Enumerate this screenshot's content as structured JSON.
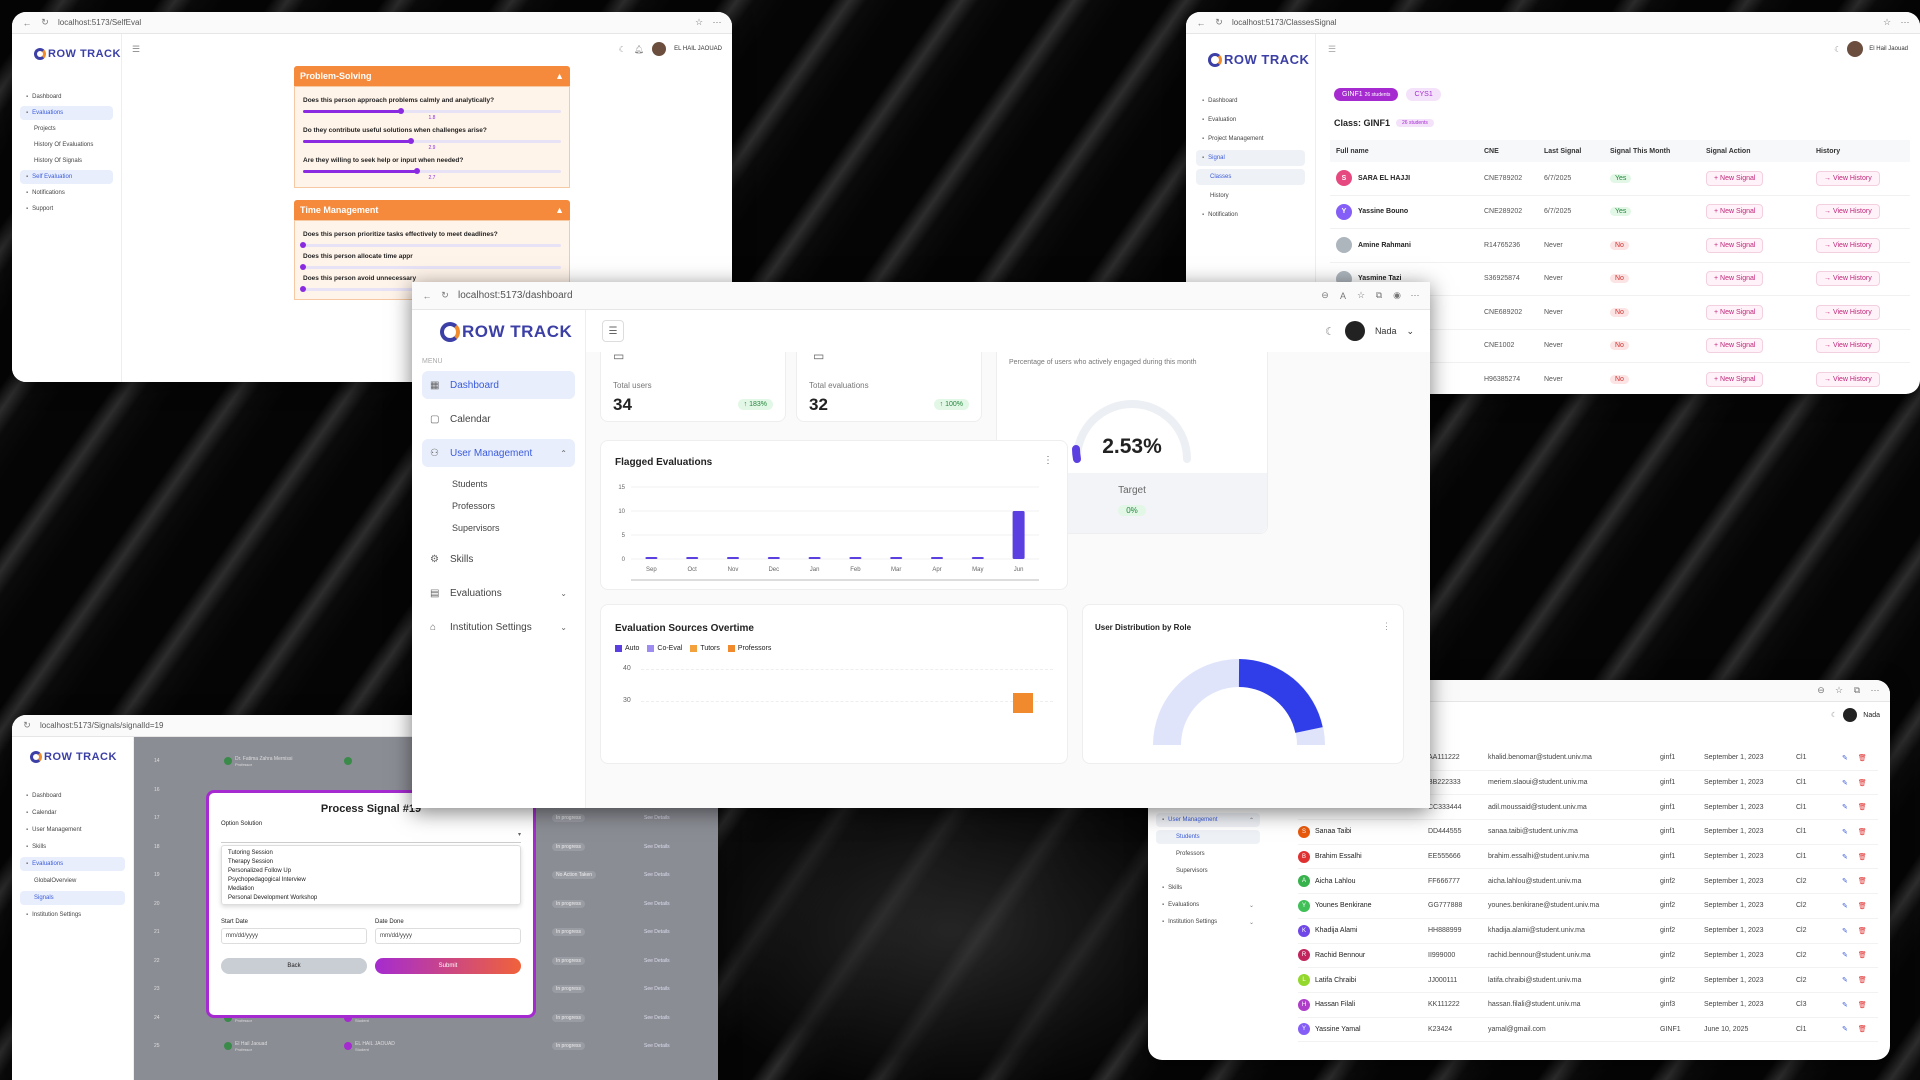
{
  "w1": {
    "url": "localhost:5173/SelfEval",
    "logo": "ROW TRACK",
    "user": "EL HAIL JAOUAD",
    "menu": [
      "Dashboard",
      "Evaluations",
      "Projects",
      "History Of Evaluations",
      "History Of Signals",
      "Self Evaluation",
      "Notifications",
      "Support"
    ],
    "section1": {
      "title": "Problem-Solving",
      "questions": [
        {
          "q": "Does this person approach problems calmly and analytically?",
          "value": "1.8",
          "pct": 0.38
        },
        {
          "q": "Do they contribute useful solutions when challenges arise?",
          "value": "2.9",
          "pct": 0.42
        },
        {
          "q": "Are they willing to seek help or input when needed?",
          "value": "2.7",
          "pct": 0.44
        }
      ]
    },
    "section2": {
      "title": "Time Management",
      "questions": [
        {
          "q": "Does this person prioritize tasks effectively to meet deadlines?",
          "pct": 0.0
        },
        {
          "q": "Does this person allocate time appr",
          "pct": 0.0
        },
        {
          "q": "Does this person avoid unnecessary",
          "pct": 0.0
        }
      ]
    }
  },
  "w2": {
    "url": "localhost:5173/ClassesSignal",
    "logo": "ROW TRACK",
    "user": "El Hail Jaouad",
    "menu": [
      "Dashboard",
      "Evaluation",
      "Project Management",
      "Signal",
      "Classes",
      "History",
      "Notification"
    ],
    "tabs": [
      {
        "label": "GINF1",
        "badge": "26 students"
      },
      {
        "label": "CYS1",
        "badge": ""
      }
    ],
    "class_title": "Class: GINF1",
    "class_badge": "26 students",
    "headers": [
      "Full name",
      "CNE",
      "Last Signal",
      "Signal This Month",
      "Signal Action",
      "History"
    ],
    "rows": [
      {
        "initial": "S",
        "name": "SARA EL HAJJI",
        "cne": "CNE789202",
        "last": "6/7/2025",
        "month": "Yes",
        "color": "#e64980"
      },
      {
        "initial": "Y",
        "name": "Yassine Bouno",
        "cne": "CNE289202",
        "last": "6/7/2025",
        "month": "Yes",
        "color": "#845ef7"
      },
      {
        "initial": "",
        "name": "Amine Rahmani",
        "cne": "R14765236",
        "last": "Never",
        "month": "No",
        "color": "#adb5bd"
      },
      {
        "initial": "",
        "name": "Yasmine Tazi",
        "cne": "S36925874",
        "last": "Never",
        "month": "No",
        "color": "#adb5bd"
      },
      {
        "initial": "",
        "name": "",
        "cne": "CNE689202",
        "last": "Never",
        "month": "No",
        "color": "#fff"
      },
      {
        "initial": "",
        "name": "",
        "cne": "CNE1002",
        "last": "Never",
        "month": "No",
        "color": "#fff"
      },
      {
        "initial": "",
        "name": "",
        "cne": "H96385274",
        "last": "Never",
        "month": "No",
        "color": "#fff"
      }
    ],
    "action_label": "New Signal",
    "history_label": "View History"
  },
  "w3": {
    "url": "localhost:5173/dashboard",
    "logo": "ROW TRACK",
    "user": "Nada",
    "menu_label": "MENU",
    "menu": [
      {
        "label": "Dashboard",
        "icon": "grid-icon",
        "active": true
      },
      {
        "label": "Calendar",
        "icon": "calendar-icon"
      },
      {
        "label": "User Management",
        "icon": "users-icon",
        "expanded": true
      },
      {
        "label": "Skills",
        "icon": "brain-icon"
      },
      {
        "label": "Evaluations",
        "icon": "clipboard-icon"
      },
      {
        "label": "Institution Settings",
        "icon": "gradcap-icon"
      }
    ],
    "submenu": [
      "Students",
      "Professors",
      "Supervisors"
    ],
    "stat1": {
      "label": "Total users",
      "value": "34",
      "change": "183%"
    },
    "stat2": {
      "label": "Total evaluations",
      "value": "32",
      "change": "100%"
    },
    "engage": {
      "caption": "Percentage of users who actively engaged during this month",
      "value": "2.53%",
      "target_label": "Target",
      "target_value": "0%"
    },
    "flagged_title": "Flagged Evaluations",
    "sources_title": "Evaluation Sources Overtime",
    "sources_legend": [
      {
        "name": "Auto",
        "color": "#5b3fe0"
      },
      {
        "name": "Co-Eval",
        "color": "#9f8cf0"
      },
      {
        "name": "Tutors",
        "color": "#f2a13c"
      },
      {
        "name": "Professors",
        "color": "#f08a2c"
      }
    ],
    "sources_ticks": [
      "40",
      "30"
    ],
    "dist_title": "User Distribution by Role"
  },
  "chart_data": {
    "type": "bar",
    "title": "Flagged Evaluations",
    "categories": [
      "Sep",
      "Oct",
      "Nov",
      "Dec",
      "Jan",
      "Feb",
      "Mar",
      "Apr",
      "May",
      "Jun"
    ],
    "values": [
      0,
      0,
      0,
      0,
      0,
      0,
      0.2,
      0,
      0,
      10
    ],
    "yticks": [
      0,
      5,
      10,
      15
    ],
    "ylim": [
      0,
      15
    ],
    "color": "#5b3fe0"
  },
  "w4": {
    "url": "localhost:5173/Signals/signalId=19",
    "logo": "ROW TRACK",
    "menu": [
      "Dashboard",
      "Calendar",
      "User Management",
      "Skills",
      "Evaluations",
      "GlobalOverview",
      "Signals",
      "Institution Settings"
    ],
    "modal_title": "Process Signal #19",
    "option_label": "Option Solution",
    "options": [
      "Tutoring Session",
      "Therapy Session",
      "Personalized Follow Up",
      "Psychopedagogical Interview",
      "Mediation",
      "Personal Development Workshop"
    ],
    "start_label": "Start Date",
    "done_label": "Date Done",
    "date_placeholder": "mm/dd/yyyy",
    "back": "Back",
    "submit": "Submit",
    "bg_rows": [
      "14",
      "16",
      "17",
      "18",
      "19",
      "20",
      "21",
      "22",
      "23",
      "24",
      "25"
    ],
    "bg_first": [
      {
        "name": "Dr. Fatima Zahra Mernissi",
        "role": "Professor"
      },
      {
        "name": "El Hail Jaouad",
        "role": "Professor"
      },
      {
        "name": "El Hail Jaouad",
        "role": "Professor"
      }
    ],
    "bg_second": [
      {
        "name": "EL HAIL JAOUAD",
        "role": "Student"
      },
      {
        "name": "EL HAIL JAOUAD",
        "role": "Student"
      }
    ],
    "bg_status": "In progress",
    "bg_status_alt": "No Action Taken",
    "bg_link": "See Details"
  },
  "w5": {
    "user": "Nada",
    "menu": [
      "User Management",
      "Students",
      "Professors",
      "Supervisors",
      "Skills",
      "Evaluations",
      "Institution Settings"
    ],
    "rows": [
      {
        "initial": "",
        "name": "",
        "cne": "AA111222",
        "email": "khalid.benomar@student.univ.ma",
        "cls": "ginf1",
        "date": "September 1, 2023",
        "lvl": "Cl1",
        "color": "#fff"
      },
      {
        "initial": "",
        "name": "",
        "cne": "BB222333",
        "email": "meriem.slaoui@student.univ.ma",
        "cls": "ginf1",
        "date": "September 1, 2023",
        "lvl": "Cl1",
        "color": "#fff"
      },
      {
        "initial": "",
        "name": "",
        "cne": "CC333444",
        "email": "adil.moussaid@student.univ.ma",
        "cls": "ginf1",
        "date": "September 1, 2023",
        "lvl": "Cl1",
        "color": "#fff"
      },
      {
        "initial": "S",
        "name": "Sanaa Taibi",
        "cne": "DD444555",
        "email": "sanaa.taibi@student.univ.ma",
        "cls": "ginf1",
        "date": "September 1, 2023",
        "lvl": "Cl1",
        "color": "#e8590c"
      },
      {
        "initial": "B",
        "name": "Brahim Essalhi",
        "cne": "EE555666",
        "email": "brahim.essalhi@student.univ.ma",
        "cls": "ginf1",
        "date": "September 1, 2023",
        "lvl": "Cl1",
        "color": "#e03131"
      },
      {
        "initial": "A",
        "name": "Aicha Lahlou",
        "cne": "FF666777",
        "email": "aicha.lahlou@student.univ.ma",
        "cls": "ginf2",
        "date": "September 1, 2023",
        "lvl": "Cl2",
        "color": "#37b24d"
      },
      {
        "initial": "Y",
        "name": "Younes Benkirane",
        "cne": "GG777888",
        "email": "younes.benkirane@student.univ.ma",
        "cls": "ginf2",
        "date": "September 1, 2023",
        "lvl": "Cl2",
        "color": "#40c057"
      },
      {
        "initial": "K",
        "name": "Khadija Alami",
        "cne": "HH888999",
        "email": "khadija.alami@student.univ.ma",
        "cls": "ginf2",
        "date": "September 1, 2023",
        "lvl": "Cl2",
        "color": "#7048e8"
      },
      {
        "initial": "R",
        "name": "Rachid Bennour",
        "cne": "II999000",
        "email": "rachid.bennour@student.univ.ma",
        "cls": "ginf2",
        "date": "September 1, 2023",
        "lvl": "Cl2",
        "color": "#c2255c"
      },
      {
        "initial": "L",
        "name": "Latifa Chraibi",
        "cne": "JJ000111",
        "email": "latifa.chraibi@student.univ.ma",
        "cls": "ginf2",
        "date": "September 1, 2023",
        "lvl": "Cl2",
        "color": "#94d82d"
      },
      {
        "initial": "H",
        "name": "Hassan Filali",
        "cne": "KK111222",
        "email": "hassan.filali@student.univ.ma",
        "cls": "ginf3",
        "date": "September 1, 2023",
        "lvl": "Cl3",
        "color": "#ae3ec9"
      },
      {
        "initial": "Y",
        "name": "Yassine Yamal",
        "cne": "K23424",
        "email": "yamal@gmail.com",
        "cls": "GINF1",
        "date": "June 10, 2025",
        "lvl": "Cl1",
        "color": "#845ef7"
      }
    ]
  }
}
